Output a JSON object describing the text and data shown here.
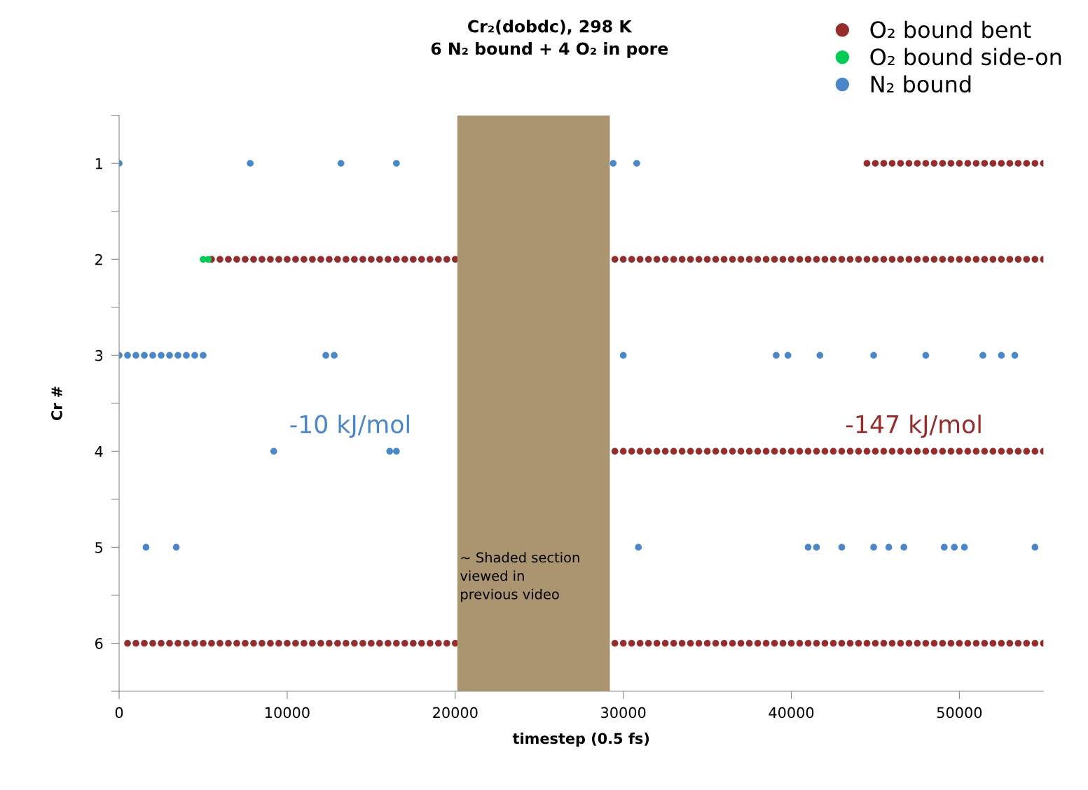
{
  "chart_data": {
    "type": "scatter",
    "title": "Cr₂(dobdc), 298 K\n6 N₂ bound + 4 O₂ in pore",
    "xlabel": "timestep (0.5 fs)",
    "ylabel": "Cr #",
    "xlim": [
      0,
      55000
    ],
    "xticks": [
      0,
      10000,
      20000,
      30000,
      40000,
      50000
    ],
    "ylim": [
      6.5,
      0.5
    ],
    "yticks": [
      {
        "value": 0.5,
        "label": null
      },
      1,
      {
        "value": 1.5,
        "label": null
      },
      2,
      {
        "value": 2.5,
        "label": null
      },
      3,
      {
        "value": 3.5,
        "label": null
      },
      4,
      {
        "value": 4.5,
        "label": null
      },
      5,
      {
        "value": 5.5,
        "label": null
      },
      6,
      {
        "value": 6.5,
        "label": null
      }
    ],
    "grid": false,
    "legend": "top right",
    "marker": "circle",
    "bands": [
      {
        "axis": "x",
        "from": 20125,
        "to": 29200,
        "label": "~ Shaded section\nviewed in\nprevious video",
        "color": "#ab9470"
      }
    ],
    "annotations": [
      "-10 kJ/mol",
      "-147 kJ/mol"
    ],
    "series": [
      {
        "name": "O₂ bound bent",
        "color": "#962d2d",
        "x": [
          5500,
          6000,
          6500,
          7000,
          7500,
          8000,
          8500,
          9000,
          9500,
          10000,
          10500,
          11000,
          11500,
          12000,
          12500,
          13000,
          13500,
          14000,
          14500,
          15000,
          15500,
          16000,
          16500,
          17000,
          17500,
          18000,
          18500,
          19000,
          19500,
          20000,
          29500,
          30000,
          30500,
          31000,
          31500,
          32000,
          32500,
          33000,
          33500,
          34000,
          34500,
          35000,
          35500,
          36000,
          36500,
          37000,
          37500,
          38000,
          38500,
          39000,
          39500,
          40000,
          40500,
          41000,
          41500,
          42000,
          42500,
          43000,
          43500,
          44000,
          44500,
          45000,
          45500,
          46000,
          46500,
          47000,
          47500,
          48000,
          48500,
          49000,
          49500,
          50000,
          50500,
          51000,
          51500,
          52000,
          52500,
          53000,
          53500,
          54000,
          54500,
          55000,
          500,
          1000,
          1500,
          2000,
          2500,
          3000,
          3500,
          4000,
          4500,
          5000,
          5500,
          6000,
          6500,
          7000,
          7500,
          8000,
          8500,
          9000,
          9500,
          10000,
          10500,
          11000,
          11500,
          12000,
          12500,
          13000,
          13500,
          14000,
          14500,
          15000,
          15500,
          16000,
          16500,
          17000,
          17500,
          18000,
          18500,
          19000,
          19500,
          20000,
          29500,
          30000,
          30500,
          31000,
          31500,
          32000,
          32500,
          33000,
          33500,
          34000,
          34500,
          35000,
          35500,
          36000,
          36500,
          37000,
          37500,
          38000,
          38500,
          39000,
          39500,
          40000,
          40500,
          41000,
          41500,
          42000,
          42500,
          43000,
          43500,
          44000,
          44500,
          45000,
          45500,
          46000,
          46500,
          47000,
          47500,
          48000,
          48500,
          49000,
          49500,
          50000,
          50500,
          51000,
          51500,
          52000,
          52500,
          53000,
          53500,
          54000,
          54500,
          55000,
          29500,
          30000,
          30500,
          31000,
          31500,
          32000,
          32500,
          33000,
          33500,
          34000,
          34500,
          35000,
          35500,
          36000,
          36500,
          37000,
          37500,
          38000,
          38500,
          39000,
          39500,
          40000,
          40500,
          41000,
          41500,
          42000,
          42500,
          43000,
          43500,
          44000,
          44500,
          45000,
          45500,
          46000,
          46500,
          47000,
          47500,
          48000,
          48500,
          49000,
          49500,
          50000,
          50500,
          51000,
          51500,
          52000,
          52500,
          53000,
          53500,
          54000,
          54500,
          55000,
          44500,
          45000,
          45500,
          46000,
          46500,
          47000,
          47500,
          48000,
          48500,
          49000,
          49500,
          50000,
          50500,
          51000,
          51500,
          52000,
          52500,
          53000,
          53500,
          54000,
          54500,
          55000
        ],
        "values": [
          2,
          2,
          2,
          2,
          2,
          2,
          2,
          2,
          2,
          2,
          2,
          2,
          2,
          2,
          2,
          2,
          2,
          2,
          2,
          2,
          2,
          2,
          2,
          2,
          2,
          2,
          2,
          2,
          2,
          2,
          2,
          2,
          2,
          2,
          2,
          2,
          2,
          2,
          2,
          2,
          2,
          2,
          2,
          2,
          2,
          2,
          2,
          2,
          2,
          2,
          2,
          2,
          2,
          2,
          2,
          2,
          2,
          2,
          2,
          2,
          2,
          2,
          2,
          2,
          2,
          2,
          2,
          2,
          2,
          2,
          2,
          2,
          2,
          2,
          2,
          2,
          2,
          2,
          2,
          2,
          2,
          2,
          6,
          6,
          6,
          6,
          6,
          6,
          6,
          6,
          6,
          6,
          6,
          6,
          6,
          6,
          6,
          6,
          6,
          6,
          6,
          6,
          6,
          6,
          6,
          6,
          6,
          6,
          6,
          6,
          6,
          6,
          6,
          6,
          6,
          6,
          6,
          6,
          6,
          6,
          6,
          6,
          6,
          6,
          6,
          6,
          6,
          6,
          6,
          6,
          6,
          6,
          6,
          6,
          6,
          6,
          6,
          6,
          6,
          6,
          6,
          6,
          6,
          6,
          6,
          6,
          6,
          6,
          6,
          6,
          6,
          6,
          6,
          6,
          6,
          6,
          6,
          6,
          6,
          6,
          6,
          6,
          6,
          6,
          6,
          6,
          6,
          6,
          6,
          6,
          6,
          6,
          6,
          6,
          4,
          4,
          4,
          4,
          4,
          4,
          4,
          4,
          4,
          4,
          4,
          4,
          4,
          4,
          4,
          4,
          4,
          4,
          4,
          4,
          4,
          4,
          4,
          4,
          4,
          4,
          4,
          4,
          4,
          4,
          4,
          4,
          4,
          4,
          4,
          4,
          4,
          4,
          4,
          4,
          4,
          4,
          4,
          4,
          4,
          4,
          4,
          4,
          4,
          4,
          4,
          4,
          1,
          1,
          1,
          1,
          1,
          1,
          1,
          1,
          1,
          1,
          1,
          1,
          1,
          1,
          1,
          1,
          1,
          1,
          1,
          1,
          1,
          1
        ]
      },
      {
        "name": "O₂ bound side-on",
        "color": "#00cc55",
        "x": [
          5000,
          5300
        ],
        "values": [
          2,
          2
        ]
      },
      {
        "name": "N₂ bound",
        "color": "#4a86c8",
        "x": [
          0,
          7800,
          13200,
          16500,
          29400,
          30800,
          0,
          500,
          1000,
          1500,
          2000,
          2500,
          3000,
          3500,
          4000,
          4500,
          5000,
          12300,
          12800,
          30000,
          39100,
          39800,
          41700,
          44900,
          48000,
          51400,
          52500,
          53300,
          9200,
          16100,
          16500,
          1600,
          3400,
          30900,
          41000,
          41500,
          43000,
          44900,
          45800,
          46700,
          49100,
          49700,
          50300,
          54500
        ],
        "values": [
          1,
          1,
          1,
          1,
          1,
          1,
          3,
          3,
          3,
          3,
          3,
          3,
          3,
          3,
          3,
          3,
          3,
          3,
          3,
          3,
          3,
          3,
          3,
          3,
          3,
          3,
          3,
          3,
          4,
          4,
          4,
          5,
          5,
          5,
          5,
          5,
          5,
          5,
          5,
          5,
          5,
          5,
          5,
          5
        ]
      }
    ]
  }
}
